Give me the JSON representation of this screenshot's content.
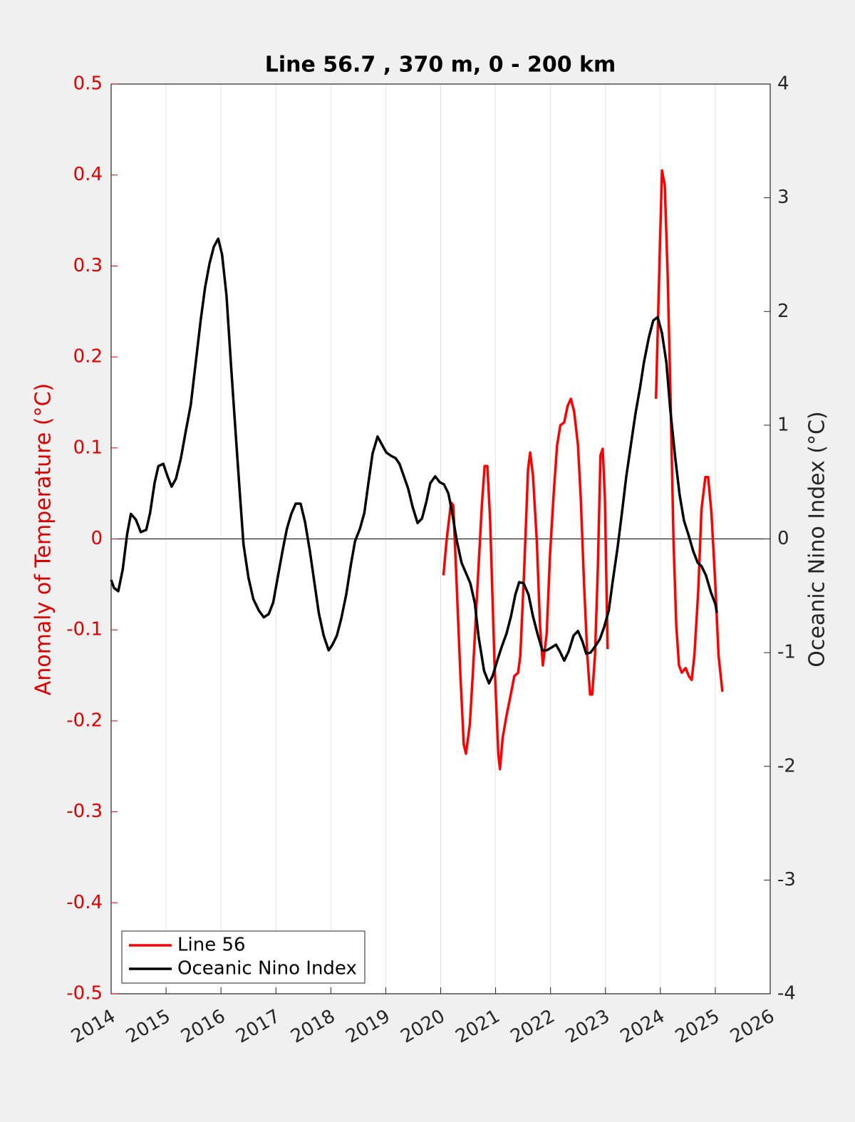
{
  "chart_data": {
    "type": "line",
    "title": "Line 56.7 , 370 m, 0 - 200 km",
    "y_label": "Anomaly of Temperature (°C)",
    "y2_label": "Oceanic Nino Index (°C)",
    "xlim": [
      2014,
      2026
    ],
    "xticks": [
      2014,
      2015,
      2016,
      2017,
      2018,
      2019,
      2020,
      2021,
      2022,
      2023,
      2024,
      2025,
      2026
    ],
    "ylim": [
      -0.5,
      0.5
    ],
    "yticks": [
      -0.5,
      -0.4,
      -0.3,
      -0.2,
      -0.1,
      0,
      0.1,
      0.2,
      0.3,
      0.4,
      0.5
    ],
    "y2lim": [
      -4,
      4
    ],
    "y2ticks": [
      -4,
      -3,
      -2,
      -1,
      0,
      1,
      2,
      3,
      4
    ],
    "grid": true,
    "zero_line": true,
    "legend": "lower left",
    "y_color": "#e00000",
    "series": [
      {
        "name": "Line 56",
        "color": "#ff0000",
        "x": [
          2020.05,
          2020.11,
          2020.19,
          2020.23,
          2020.28,
          2020.36,
          2020.42,
          2020.46,
          2020.53,
          2020.59,
          2020.67,
          2020.75,
          2020.8,
          2020.85,
          2020.9,
          2020.98,
          2021.05,
          2021.08,
          2021.13,
          2021.2,
          2021.27,
          2021.34,
          2021.41,
          2021.45,
          2021.52,
          2021.59,
          2021.63,
          2021.68,
          2021.75,
          2021.81,
          2021.86,
          2021.93,
          2021.99,
          2022.06,
          2022.12,
          2022.18,
          2022.25,
          2022.31,
          2022.37,
          2022.43,
          2022.5,
          2022.55,
          2022.61,
          2022.67,
          2022.72,
          2022.76,
          2022.81,
          2022.86,
          2022.91,
          2022.95,
          2022.99,
          2023.04,
          null,
          2023.92,
          2023.99,
          2024.03,
          2024.08,
          2024.13,
          2024.18,
          2024.24,
          2024.29,
          2024.34,
          2024.39,
          2024.46,
          2024.52,
          2024.57,
          2024.62,
          2024.69,
          2024.75,
          2024.82,
          2024.87,
          2024.93,
          2025.0,
          2025.06,
          2025.13
        ],
        "values": [
          -0.04,
          0.0,
          0.04,
          0.037,
          -0.034,
          -0.15,
          -0.226,
          -0.236,
          -0.204,
          -0.143,
          -0.053,
          0.037,
          0.08,
          0.08,
          0.021,
          -0.135,
          -0.237,
          -0.253,
          -0.218,
          -0.194,
          -0.173,
          -0.151,
          -0.147,
          -0.128,
          -0.034,
          0.076,
          0.095,
          0.07,
          -0.002,
          -0.096,
          -0.139,
          -0.104,
          -0.018,
          0.052,
          0.103,
          0.125,
          0.128,
          0.146,
          0.154,
          0.14,
          0.103,
          0.045,
          -0.049,
          -0.128,
          -0.171,
          -0.171,
          -0.128,
          -0.034,
          0.092,
          0.099,
          0.045,
          -0.121,
          null,
          0.154,
          0.319,
          0.405,
          0.389,
          0.295,
          0.17,
          -0.002,
          -0.096,
          -0.139,
          -0.147,
          -0.142,
          -0.151,
          -0.155,
          -0.128,
          -0.057,
          0.033,
          0.068,
          0.068,
          0.029,
          -0.049,
          -0.128,
          -0.168
        ]
      },
      {
        "name": "Oceanic Nino Index",
        "color": "#000000",
        "axis": "y2",
        "x": [
          2014.0,
          2014.05,
          2014.13,
          2014.21,
          2014.29,
          2014.36,
          2014.45,
          2014.54,
          2014.64,
          2014.71,
          2014.79,
          2014.86,
          2014.95,
          2015.02,
          2015.1,
          2015.18,
          2015.27,
          2015.36,
          2015.45,
          2015.54,
          2015.63,
          2015.71,
          2015.79,
          2015.87,
          2015.95,
          2016.02,
          2016.1,
          2016.18,
          2016.26,
          2016.34,
          2016.41,
          2016.5,
          2016.59,
          2016.69,
          2016.78,
          2016.87,
          2016.95,
          2017.04,
          2017.13,
          2017.2,
          2017.28,
          2017.36,
          2017.45,
          2017.53,
          2017.62,
          2017.7,
          2017.78,
          2017.87,
          2017.96,
          2018.03,
          2018.11,
          2018.19,
          2018.28,
          2018.36,
          2018.44,
          2018.53,
          2018.61,
          2018.68,
          2018.76,
          2018.85,
          2018.93,
          2019.01,
          2019.1,
          2019.18,
          2019.25,
          2019.33,
          2019.41,
          2019.49,
          2019.58,
          2019.66,
          2019.74,
          2019.81,
          2019.9,
          2019.98,
          2020.06,
          2020.14,
          2020.21,
          2020.29,
          2020.38,
          2020.46,
          2020.54,
          2020.62,
          2020.69,
          2020.79,
          2020.88,
          2020.95,
          2021.03,
          2021.11,
          2021.2,
          2021.28,
          2021.36,
          2021.43,
          2021.51,
          2021.6,
          2021.68,
          2021.76,
          2021.85,
          2021.93,
          2022.0,
          2022.1,
          2022.17,
          2022.25,
          2022.33,
          2022.42,
          2022.5,
          2022.58,
          2022.65,
          2022.73,
          2022.82,
          2022.9,
          2022.98,
          2023.06,
          2023.13,
          2023.22,
          2023.3,
          2023.38,
          2023.47,
          2023.55,
          2023.63,
          2023.7,
          2023.79,
          2023.87,
          2023.95,
          2024.03,
          2024.11,
          2024.18,
          2024.27,
          2024.35,
          2024.43,
          2024.51,
          2024.6,
          2024.68,
          2024.75,
          2024.83,
          2024.92,
          2025.0,
          2025.03
        ],
        "values": [
          -0.36,
          -0.43,
          -0.46,
          -0.27,
          0.04,
          0.22,
          0.17,
          0.06,
          0.08,
          0.23,
          0.49,
          0.64,
          0.66,
          0.56,
          0.46,
          0.53,
          0.71,
          0.95,
          1.18,
          1.55,
          1.92,
          2.21,
          2.42,
          2.57,
          2.64,
          2.5,
          2.14,
          1.55,
          0.98,
          0.42,
          -0.05,
          -0.34,
          -0.53,
          -0.63,
          -0.69,
          -0.66,
          -0.56,
          -0.32,
          -0.08,
          0.09,
          0.22,
          0.31,
          0.31,
          0.15,
          -0.11,
          -0.38,
          -0.65,
          -0.85,
          -0.98,
          -0.93,
          -0.85,
          -0.7,
          -0.49,
          -0.24,
          -0.02,
          0.09,
          0.23,
          0.48,
          0.75,
          0.9,
          0.83,
          0.76,
          0.73,
          0.71,
          0.66,
          0.55,
          0.44,
          0.28,
          0.14,
          0.18,
          0.33,
          0.49,
          0.55,
          0.5,
          0.48,
          0.4,
          0.23,
          -0.01,
          -0.21,
          -0.3,
          -0.39,
          -0.56,
          -0.86,
          -1.16,
          -1.27,
          -1.2,
          -1.07,
          -0.95,
          -0.83,
          -0.68,
          -0.49,
          -0.38,
          -0.39,
          -0.49,
          -0.68,
          -0.83,
          -0.98,
          -0.98,
          -0.96,
          -0.93,
          -0.99,
          -1.07,
          -0.99,
          -0.85,
          -0.81,
          -0.9,
          -1.01,
          -1.0,
          -0.94,
          -0.88,
          -0.77,
          -0.63,
          -0.38,
          -0.08,
          0.23,
          0.55,
          0.85,
          1.11,
          1.33,
          1.55,
          1.77,
          1.92,
          1.95,
          1.81,
          1.55,
          1.14,
          0.72,
          0.39,
          0.16,
          0.04,
          -0.11,
          -0.21,
          -0.24,
          -0.32,
          -0.47,
          -0.57,
          -0.65
        ]
      }
    ]
  }
}
